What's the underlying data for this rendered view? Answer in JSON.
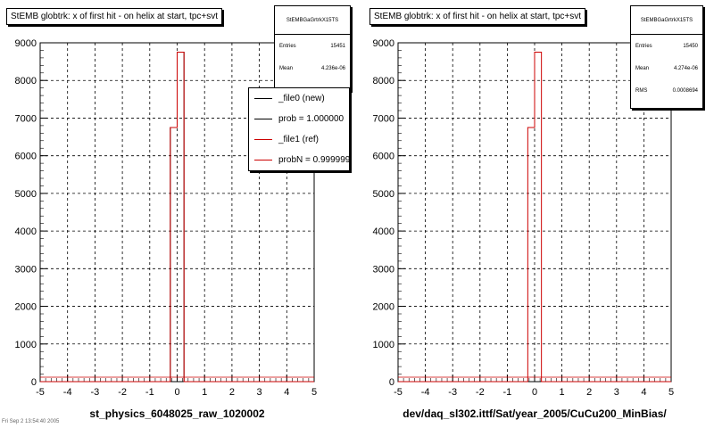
{
  "chart_data": [
    {
      "type": "bar",
      "title": "StEMB globtrk: x of first hit - on helix at start, tpc+svt",
      "xlabel": "st_physics_6048025_raw_1020002",
      "ylabel": "",
      "xlim": [
        -5,
        5
      ],
      "ylim": [
        0,
        9000
      ],
      "xticks": [
        "-5",
        "-4",
        "-3",
        "-2",
        "-1",
        "0",
        "1",
        "2",
        "3",
        "4",
        "5"
      ],
      "yticks": [
        "0",
        "1000",
        "2000",
        "3000",
        "4000",
        "5000",
        "6000",
        "7000",
        "8000",
        "9000"
      ],
      "grid": true,
      "bins": {
        "x": [
          -0.25,
          0.0
        ],
        "width": 0.25
      },
      "series": [
        {
          "name": "_file0 (new)",
          "color": "#000000",
          "values": [
            6750,
            8750
          ]
        },
        {
          "name": "_file1 (ref)",
          "color": "#cc0000",
          "values": [
            6750,
            8750
          ]
        }
      ],
      "stats": {
        "name": "StEMBGaGrtrkX15TS",
        "rows": [
          {
            "label": "Entries",
            "value": "15451"
          },
          {
            "label": "Mean",
            "value": "4.236e-06"
          }
        ]
      },
      "legend": {
        "position": "top-right",
        "items": [
          {
            "label": "_file0 (new)",
            "color": "#000000"
          },
          {
            "label": "prob = 1.000000",
            "color": "#000000"
          },
          {
            "label": "_file1 (ref)",
            "color": "#cc0000"
          },
          {
            "label": "probN = 0.999999",
            "color": "#cc0000"
          }
        ]
      }
    },
    {
      "type": "bar",
      "title": "StEMB globtrk: x of first hit - on helix at start, tpc+svt",
      "xlabel": "dev/daq_sl302.ittf/Sat/year_2005/CuCu200_MinBias/",
      "ylabel": "",
      "xlim": [
        -5,
        5
      ],
      "ylim": [
        0,
        9000
      ],
      "xticks": [
        "-5",
        "-4",
        "-3",
        "-2",
        "-1",
        "0",
        "1",
        "2",
        "3",
        "4",
        "5"
      ],
      "yticks": [
        "0",
        "1000",
        "2000",
        "3000",
        "4000",
        "5000",
        "6000",
        "7000",
        "8000",
        "9000"
      ],
      "grid": true,
      "bins": {
        "x": [
          -0.25,
          0.0
        ],
        "width": 0.25
      },
      "series": [
        {
          "name": "",
          "color": "#cc0000",
          "values": [
            6750,
            8750
          ]
        }
      ],
      "stats": {
        "name": "StEMBGaGrtrkX15TS",
        "rows": [
          {
            "label": "Entries",
            "value": "15450"
          },
          {
            "label": "Mean",
            "value": "4.274e-06"
          },
          {
            "label": "RMS",
            "value": "0.0008694"
          }
        ]
      }
    }
  ],
  "footer_text": "Fri Sep  2 13:54:40 2005"
}
